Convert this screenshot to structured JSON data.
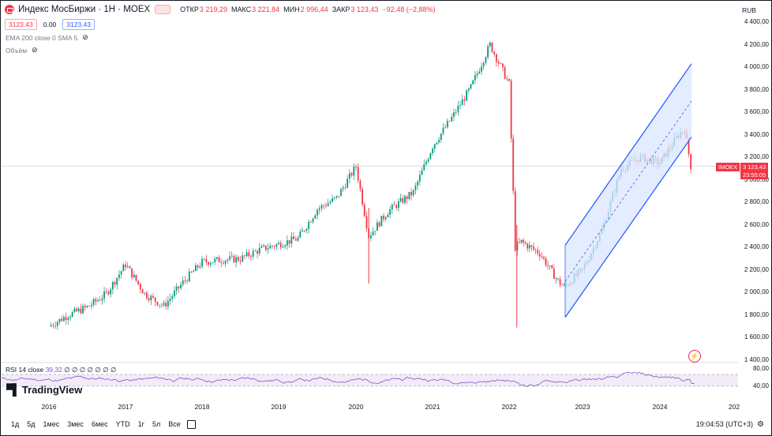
{
  "header": {
    "symbol_title": "Индекс МосБиржи · 1Н · MOEX",
    "open_label": "ОТКР",
    "open_value": "3 219,29",
    "high_label": "МАКС",
    "high_value": "3 221,84",
    "low_label": "МИН",
    "low_value": "2 996,44",
    "close_label": "ЗАКР",
    "close_value": "3 123,43",
    "change_value": "−92,48 (−2,88%)",
    "sell_price": "3123.43",
    "spread": "0.00",
    "buy_price": "3123.43"
  },
  "indicators": {
    "ema_label": "EMA 200 close 0 SMA 5",
    "volume_label": "Объём",
    "rsi_label": "RSI 14 close",
    "rsi_value": "39,32",
    "rsi_extra": "∅ ∅ ∅ ∅ ∅ ∅ ∅"
  },
  "branding": {
    "logo_text": "TradingView"
  },
  "price_scale": {
    "currency": "RUB",
    "labels": [
      "4 400,00",
      "4 200,00",
      "4 000,00",
      "3 800,00",
      "3 600,00",
      "3 400,00",
      "3 200,00",
      "3 000,00",
      "2 800,00",
      "2 600,00",
      "2 400,00",
      "2 200,00",
      "2 000,00",
      "1 800,00",
      "1 600,00",
      "1 400,00"
    ],
    "rsi_labels": [
      "80,00",
      "40,00"
    ],
    "last_price_tag": "3 123,43",
    "countdown_tag": "23:55:05",
    "symbol_tag": "IMOEX"
  },
  "time_axis": {
    "labels": [
      "2016",
      "2017",
      "2018",
      "2019",
      "2020",
      "2021",
      "2022",
      "2023",
      "2024",
      "202"
    ]
  },
  "bottom_bar": {
    "ranges": [
      "1д",
      "5д",
      "1мес",
      "3мес",
      "6мес",
      "YTD",
      "1г",
      "5л",
      "Все"
    ],
    "clock": "19:04:53 (UTC+3)"
  },
  "colors": {
    "up": "#089981",
    "down": "#f23645",
    "channel": "#2962ff",
    "channel_fill": "#dbe5ff",
    "rsi": "#7e57c2"
  },
  "icons": {
    "eye": "eye-crossed-icon",
    "calendar": "calendar-range-icon",
    "gear": "gear-icon",
    "flash": "flash-icon"
  },
  "chart_data": {
    "type": "line",
    "title": "Индекс МосБиржи · 1Н · MOEX",
    "x": [
      "2016-01",
      "2016-04",
      "2016-07",
      "2016-10",
      "2017-01",
      "2017-04",
      "2017-07",
      "2017-10",
      "2018-01",
      "2018-04",
      "2018-07",
      "2018-10",
      "2019-01",
      "2019-04",
      "2019-07",
      "2019-10",
      "2020-01",
      "2020-03",
      "2020-06",
      "2020-10",
      "2021-01",
      "2021-04",
      "2021-07",
      "2021-10",
      "2022-01",
      "2022-02",
      "2022-03",
      "2022-06",
      "2022-09",
      "2022-10",
      "2023-01",
      "2023-04",
      "2023-07",
      "2023-10",
      "2024-01",
      "2024-04",
      "2024-05",
      "2024-06"
    ],
    "series": [
      {
        "values": [
          1700,
          1800,
          1870,
          1990,
          2250,
          1990,
          1880,
          2090,
          2270,
          2290,
          2300,
          2380,
          2430,
          2480,
          2740,
          2840,
          3120,
          2500,
          2720,
          2890,
          3300,
          3550,
          3820,
          4200,
          3850,
          2400,
          2450,
          2350,
          2100,
          2050,
          2200,
          2550,
          3100,
          3200,
          3150,
          3400,
          3450,
          3123
        ]
      }
    ],
    "ylim": [
      1400,
      4400
    ],
    "rsi_ylim": [
      0,
      100
    ],
    "rsi_levels": [
      70,
      30
    ],
    "rsi_last": 39.32
  }
}
